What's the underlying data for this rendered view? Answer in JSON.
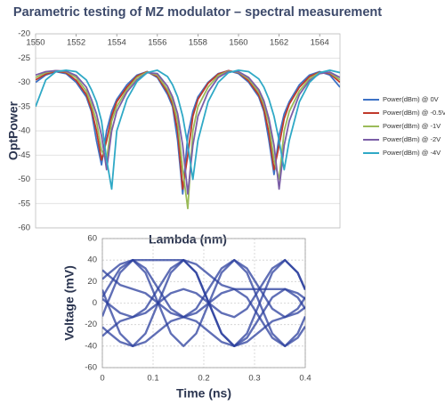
{
  "chart_data": [
    {
      "type": "line",
      "title": "Parametric testing of MZ modulator – spectral measurement",
      "x_label": "Lambda (nm)",
      "y_label": "OptPower",
      "x": [
        1550,
        1550.5,
        1551,
        1551.5,
        1552,
        1552.5,
        1552.75,
        1553,
        1553.25,
        1553.5,
        1553.75,
        1554,
        1554.5,
        1555,
        1555.5,
        1556,
        1556.5,
        1556.75,
        1557,
        1557.25,
        1557.5,
        1557.75,
        1558,
        1558.5,
        1559,
        1559.5,
        1560,
        1560.5,
        1561,
        1561.25,
        1561.5,
        1561.75,
        1562,
        1562.25,
        1562.5,
        1563,
        1563.5,
        1564,
        1564.5,
        1565
      ],
      "series": [
        {
          "name": "Power(dBm) @ 0V",
          "color": "#3d72c6",
          "values": [
            -30,
            -28.5,
            -27.8,
            -28.2,
            -30,
            -33,
            -36,
            -42,
            -47,
            -40,
            -36,
            -33.5,
            -30.5,
            -28.5,
            -27.8,
            -29,
            -32.5,
            -35,
            -42,
            -53,
            -41,
            -36,
            -33,
            -30,
            -28.2,
            -27.6,
            -28.2,
            -30,
            -33,
            -36,
            -42,
            -49,
            -41,
            -36.5,
            -34,
            -30.5,
            -28.5,
            -27.8,
            -28.5,
            -31
          ]
        },
        {
          "name": "Power(dBm) @ -0.5V",
          "color": "#c0392b",
          "values": [
            -29.5,
            -28.3,
            -27.7,
            -28,
            -29.6,
            -32.5,
            -35.5,
            -40,
            -46,
            -42,
            -37,
            -34,
            -31,
            -28.7,
            -27.8,
            -28.8,
            -32,
            -34.5,
            -40,
            -52,
            -45,
            -37,
            -33.5,
            -30.2,
            -28.3,
            -27.6,
            -28,
            -29.7,
            -32.6,
            -35.5,
            -40.5,
            -48,
            -43,
            -37.5,
            -34.5,
            -31,
            -28.8,
            -27.9,
            -28.2,
            -30
          ]
        },
        {
          "name": "Power(dBm) @ -1V",
          "color": "#9bbb59",
          "values": [
            -29,
            -28,
            -27.6,
            -27.8,
            -29,
            -31.8,
            -34.5,
            -38,
            -44,
            -46,
            -38,
            -35,
            -31.5,
            -29,
            -27.9,
            -28.5,
            -31.5,
            -33.8,
            -38,
            -48,
            -56,
            -40,
            -35,
            -31,
            -28.6,
            -27.7,
            -27.9,
            -29.3,
            -32,
            -34.5,
            -38.5,
            -46,
            -50,
            -40,
            -36,
            -31.8,
            -29.2,
            -28,
            -28,
            -29.5
          ]
        },
        {
          "name": "Power(dBm) @ -2V",
          "color": "#7b5ea7",
          "values": [
            -28.5,
            -27.8,
            -27.6,
            -27.7,
            -28.6,
            -31,
            -33.5,
            -36.5,
            -41,
            -48,
            -40,
            -36,
            -32,
            -29.5,
            -28,
            -28.2,
            -30.8,
            -33,
            -36.5,
            -43,
            -53,
            -43,
            -37,
            -32,
            -29,
            -27.8,
            -27.8,
            -29,
            -31.5,
            -33.8,
            -37.5,
            -43,
            -52,
            -43,
            -38,
            -32.5,
            -29.6,
            -28.2,
            -27.9,
            -29
          ]
        },
        {
          "name": "Power(dBm) @ -4V",
          "color": "#2fa9c6",
          "values": [
            -35,
            -29.5,
            -27.8,
            -27.5,
            -27.8,
            -29.5,
            -31.5,
            -34,
            -38,
            -46,
            -52,
            -40,
            -33.5,
            -29.8,
            -28,
            -27.5,
            -28.8,
            -30.5,
            -33,
            -37,
            -43,
            -50,
            -42,
            -34,
            -30,
            -28,
            -27.5,
            -27.8,
            -29.3,
            -31,
            -33.5,
            -37,
            -42,
            -48,
            -42,
            -34,
            -30,
            -28,
            -27.5,
            -28
          ]
        }
      ],
      "xlim": [
        1550,
        1565
      ],
      "xticks": [
        1550,
        1552,
        1554,
        1556,
        1558,
        1560,
        1562,
        1564
      ],
      "ylim": [
        -60,
        -20
      ],
      "yticks": [
        -20,
        -25,
        -30,
        -35,
        -40,
        -45,
        -50,
        -55,
        -60
      ],
      "grid": true,
      "legend": "right",
      "x_axis_position": "top"
    },
    {
      "type": "line",
      "x_label": "Time (ns)",
      "y_label": "Voltage (mV)",
      "x": [
        0,
        0.01,
        0.035,
        0.06,
        0.085,
        0.11,
        0.135,
        0.16,
        0.185,
        0.21,
        0.235,
        0.26,
        0.285,
        0.31,
        0.335,
        0.36,
        0.385,
        0.4
      ],
      "series": [
        {
          "color": "#2b3f9e",
          "values": [
            12.4,
            0,
            -28.3,
            -40,
            -28.3,
            0,
            28.3,
            40,
            28.3,
            0,
            -28.3,
            -40,
            -28.3,
            0,
            28.3,
            40,
            28.3,
            12.4
          ]
        },
        {
          "color": "#2b3f9e",
          "values": [
            -12.4,
            0,
            28.3,
            40,
            28.3,
            0,
            -28.3,
            -40,
            -28.3,
            0,
            28.3,
            40,
            28.3,
            0,
            -28.3,
            -40,
            -28.3,
            -12.4
          ]
        },
        {
          "color": "#2b3f9e",
          "values": [
            4,
            0,
            -9.2,
            -13,
            -5.3,
            13.5,
            32.3,
            40,
            36.1,
            26.5,
            16.9,
            13,
            5.3,
            -13.5,
            -32.3,
            -40,
            -32.3,
            -21.7
          ]
        },
        {
          "color": "#2b3f9e",
          "values": [
            5.3,
            13.5,
            32.3,
            40,
            32.3,
            13.5,
            -5.3,
            -13,
            -16.9,
            -26.5,
            -36.1,
            -40,
            -32.3,
            -13.5,
            5.3,
            13,
            9.2,
            4
          ]
        },
        {
          "color": "#2b3f9e",
          "values": [
            30.7,
            26.5,
            16.9,
            13,
            9.2,
            0,
            -9.2,
            -13,
            -5.3,
            13.5,
            32.3,
            40,
            32.3,
            13.5,
            -5.3,
            -13,
            -5.3,
            5.3
          ]
        },
        {
          "color": "#2b3f9e",
          "values": [
            -30.7,
            -26.5,
            -16.9,
            -13,
            -9.2,
            0,
            9.2,
            13,
            9.2,
            0,
            -9.2,
            -13,
            -5.3,
            13.5,
            32.3,
            40,
            28.3,
            12.4
          ]
        },
        {
          "color": "#2b3f9e",
          "values": [
            22.3,
            26.5,
            36.1,
            40,
            40,
            40,
            40,
            40,
            28.3,
            0,
            -28.3,
            -40,
            -36.1,
            -26.5,
            -16.9,
            -13,
            -9.2,
            -4
          ]
        },
        {
          "color": "#2b3f9e",
          "values": [
            -22.3,
            -26.5,
            -36.1,
            -40,
            -36.1,
            -26.5,
            -16.9,
            -13,
            -9.2,
            0,
            9.2,
            13,
            13,
            13,
            13,
            13,
            5.3,
            -5.3
          ]
        }
      ],
      "xlim": [
        0,
        0.4
      ],
      "xticks": [
        0,
        0.1,
        0.2,
        0.3,
        0.4
      ],
      "ylim": [
        -60,
        60
      ],
      "yticks": [
        60,
        40,
        20,
        0,
        -20,
        -40,
        -60
      ],
      "grid": true
    }
  ]
}
